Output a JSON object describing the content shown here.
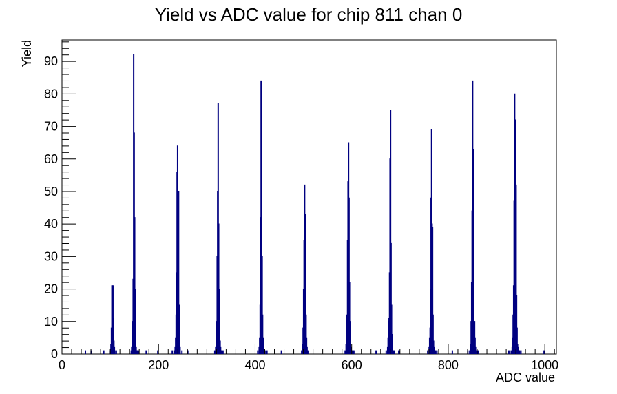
{
  "chart_data": {
    "type": "bar",
    "title": "Yield vs ADC value for chip 811 chan 0",
    "xlabel": "ADC value",
    "ylabel": "Yield",
    "xlim": [
      0,
      1024
    ],
    "ylim": [
      0,
      96.6
    ],
    "xticks": [
      0,
      200,
      400,
      600,
      800,
      1000
    ],
    "yticks": [
      0,
      10,
      20,
      30,
      40,
      50,
      60,
      70,
      80,
      90
    ],
    "grid": false,
    "legend": "none",
    "bin_width": 1,
    "colors": {
      "series": "#000080",
      "axis": "#000000",
      "background": "#ffffff"
    },
    "series": [
      {
        "x": [
          48,
          60,
          86,
          100,
          101,
          102,
          103,
          104,
          105,
          106,
          107,
          108,
          109,
          112,
          143,
          144,
          145,
          146,
          147,
          148,
          149,
          150,
          151,
          152,
          153,
          154,
          155,
          156,
          158,
          174,
          198,
          228,
          233,
          234,
          235,
          236,
          237,
          238,
          239,
          240,
          241,
          242,
          243,
          244,
          248,
          260,
          316,
          318,
          319,
          320,
          321,
          322,
          323,
          324,
          325,
          326,
          327,
          328,
          329,
          330,
          333,
          405,
          408,
          409,
          410,
          411,
          412,
          413,
          414,
          415,
          416,
          417,
          418,
          419,
          420,
          424,
          454,
          496,
          498,
          499,
          500,
          501,
          502,
          503,
          504,
          505,
          506,
          507,
          508,
          510,
          586,
          588,
          589,
          590,
          591,
          592,
          593,
          594,
          595,
          596,
          597,
          598,
          599,
          600,
          602,
          604,
          650,
          671,
          674,
          675,
          676,
          677,
          678,
          679,
          680,
          681,
          682,
          683,
          684,
          685,
          686,
          688,
          697,
          698,
          757,
          760,
          761,
          762,
          763,
          764,
          765,
          766,
          767,
          768,
          769,
          770,
          771,
          772,
          773,
          776,
          808,
          840,
          844,
          846,
          847,
          848,
          849,
          850,
          851,
          852,
          853,
          854,
          855,
          856,
          857,
          858,
          859,
          860,
          862,
          925,
          930,
          932,
          933,
          934,
          935,
          936,
          937,
          938,
          939,
          940,
          941,
          942,
          943,
          944,
          945,
          946,
          947,
          950,
          998
        ],
        "values": [
          1,
          1,
          1,
          1,
          3,
          8,
          21,
          14,
          21,
          11,
          4,
          2,
          1,
          1,
          1,
          2,
          4,
          10,
          23,
          92,
          68,
          42,
          20,
          5,
          2,
          1,
          1,
          1,
          1,
          1,
          1,
          1,
          1,
          2,
          5,
          12,
          25,
          56,
          64,
          28,
          50,
          15,
          5,
          2,
          1,
          1,
          1,
          2,
          5,
          10,
          30,
          50,
          77,
          40,
          20,
          10,
          4,
          2,
          1,
          1,
          1,
          1,
          2,
          5,
          15,
          42,
          84,
          50,
          30,
          12,
          5,
          2,
          1,
          1,
          1,
          1,
          1,
          1,
          3,
          8,
          20,
          35,
          52,
          43,
          25,
          12,
          5,
          2,
          1,
          1,
          1,
          3,
          12,
          8,
          35,
          53,
          65,
          48,
          22,
          10,
          4,
          2,
          1,
          1,
          1,
          1,
          1,
          1,
          2,
          5,
          10,
          11,
          25,
          60,
          75,
          34,
          15,
          6,
          3,
          1,
          1,
          1,
          1,
          1,
          1,
          2,
          5,
          8,
          20,
          48,
          69,
          40,
          39,
          12,
          4,
          2,
          1,
          1,
          1,
          1,
          1,
          1,
          1,
          3,
          10,
          22,
          44,
          84,
          63,
          35,
          10,
          10,
          5,
          2,
          1,
          1,
          1,
          1,
          1,
          1,
          1,
          2,
          5,
          12,
          21,
          47,
          80,
          72,
          55,
          52,
          18,
          8,
          3,
          2,
          1,
          1,
          1,
          1,
          1
        ]
      }
    ]
  }
}
